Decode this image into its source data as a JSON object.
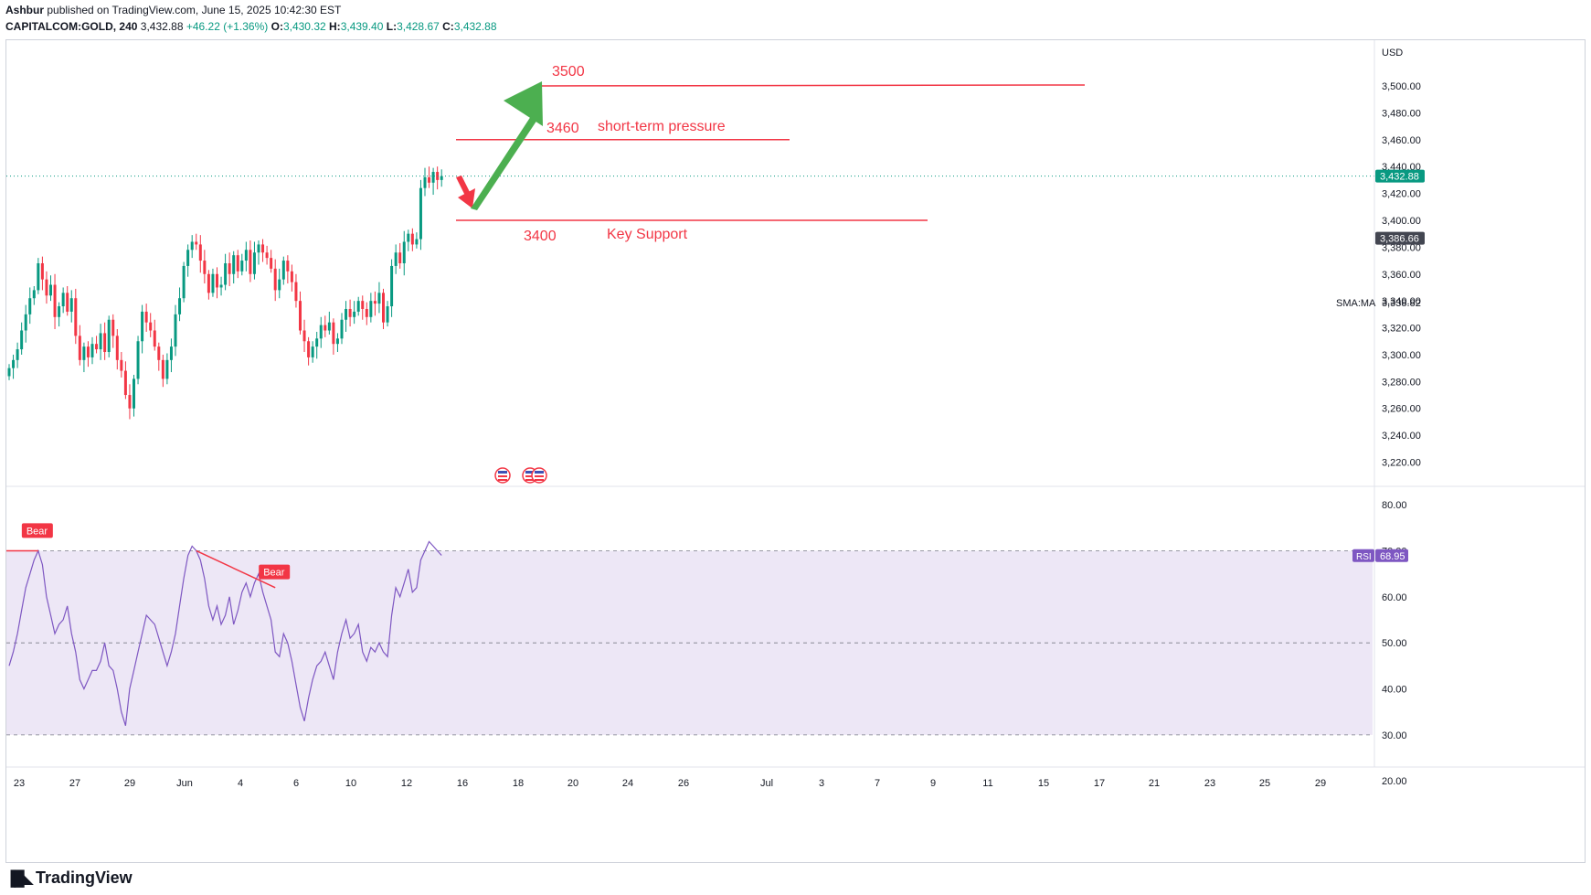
{
  "header": {
    "author": "Ashbur",
    "published_text": "published on TradingView.com, June 15, 2025 10:42:30 EST",
    "symbol": "CAPITALCOM:GOLD, 240",
    "last": "3,432.88",
    "change": "+46.22 (+1.36%)",
    "o_label": "O:",
    "o_val": "3,430.32",
    "h_label": "H:",
    "h_val": "3,439.40",
    "l_label": "L:",
    "l_val": "3,428.67",
    "c_label": "C:",
    "c_val": "3,432.88"
  },
  "footer": {
    "brand": "TradingView"
  },
  "colors": {
    "up": "#089981",
    "down": "#f23645",
    "annot": "#f23645",
    "arrow_up": "#4caf50",
    "rsi_line": "#7e57c2",
    "rsi_band": "#ede7f6",
    "price_tag": "#089981",
    "prev_tag": "#434651"
  },
  "chart_data": {
    "type": "candlestick",
    "currency": "USD",
    "price_axis": {
      "range": [
        3202,
        3534
      ],
      "ticks": [
        "3,220.00",
        "3,240.00",
        "3,260.00",
        "3,280.00",
        "3,300.00",
        "3,320.00",
        "3,340.00",
        "3,360.00",
        "3,380.00",
        "3,400.00",
        "3,420.00",
        "3,440.00",
        "3,460.00",
        "3,480.00",
        "3,500.00"
      ],
      "tick_values": [
        3220,
        3240,
        3260,
        3280,
        3300,
        3320,
        3340,
        3360,
        3380,
        3400,
        3420,
        3440,
        3460,
        3480,
        3500
      ]
    },
    "last_price": {
      "value": 3432.88,
      "label": "3,432.88"
    },
    "prev_close": {
      "value": 3386.66,
      "label": "3,386.66"
    },
    "sma": {
      "label": "SMA:MA",
      "value": "3,338.82"
    },
    "x_axis_labels": [
      "23",
      "27",
      "29",
      "Jun",
      "4",
      "6",
      "10",
      "12",
      "16",
      "18",
      "20",
      "24",
      "26",
      "Jul",
      "3",
      "7",
      "9",
      "11",
      "15",
      "17",
      "21",
      "23",
      "25",
      "29"
    ],
    "closes": [
      3290,
      3296,
      3304,
      3318,
      3330,
      3342,
      3348,
      3368,
      3356,
      3344,
      3352,
      3328,
      3336,
      3346,
      3332,
      3342,
      3314,
      3296,
      3306,
      3298,
      3308,
      3304,
      3316,
      3302,
      3326,
      3314,
      3296,
      3288,
      3270,
      3260,
      3282,
      3310,
      3332,
      3324,
      3318,
      3306,
      3296,
      3282,
      3296,
      3306,
      3330,
      3342,
      3366,
      3378,
      3384,
      3382,
      3370,
      3360,
      3346,
      3360,
      3350,
      3352,
      3368,
      3360,
      3374,
      3362,
      3370,
      3378,
      3360,
      3376,
      3382,
      3376,
      3372,
      3364,
      3348,
      3356,
      3370,
      3362,
      3354,
      3340,
      3318,
      3310,
      3298,
      3306,
      3312,
      3322,
      3318,
      3324,
      3308,
      3312,
      3326,
      3334,
      3328,
      3332,
      3340,
      3334,
      3328,
      3340,
      3338,
      3346,
      3324,
      3336,
      3366,
      3376,
      3368,
      3384,
      3390,
      3382,
      3386,
      3424,
      3432,
      3428,
      3436,
      3430,
      3432.88
    ],
    "annotations": [
      {
        "label": "3500",
        "price": 3500
      },
      {
        "label": "3460",
        "note": "short-term pressure",
        "price": 3460
      },
      {
        "label": "3400",
        "note": "Key Support",
        "price": 3400
      }
    ],
    "rsi": {
      "label": "RSI",
      "value_label": "68.95",
      "range": [
        26,
        84
      ],
      "overbought": 70,
      "middle": 50,
      "oversold": 30,
      "ticks": [
        "20.00",
        "30.00",
        "40.00",
        "50.00",
        "60.00",
        "70.00",
        "80.00"
      ],
      "tick_values": [
        20,
        30,
        40,
        50,
        60,
        70,
        80
      ],
      "divergence_label": "Bear",
      "values": [
        45,
        48,
        52,
        57,
        62,
        65,
        68,
        70,
        67,
        60,
        56,
        52,
        54,
        55,
        58,
        52,
        48,
        42,
        40,
        42,
        44,
        44,
        46,
        50,
        45,
        44,
        40,
        35,
        32,
        40,
        44,
        48,
        52,
        56,
        55,
        54,
        51,
        48,
        45,
        48,
        52,
        58,
        64,
        69,
        71,
        70,
        68,
        64,
        58,
        55,
        58,
        54,
        56,
        60,
        54,
        57,
        61,
        63,
        60,
        63,
        65,
        61,
        58,
        55,
        48,
        47,
        52,
        50,
        46,
        41,
        36,
        33,
        38,
        42,
        45,
        46,
        48,
        45,
        42,
        48,
        52,
        55,
        51,
        52,
        54,
        48,
        46,
        49,
        48,
        50,
        48,
        47,
        56,
        62,
        60,
        63,
        66,
        61,
        62,
        68,
        70,
        72,
        71,
        70,
        69
      ]
    }
  }
}
